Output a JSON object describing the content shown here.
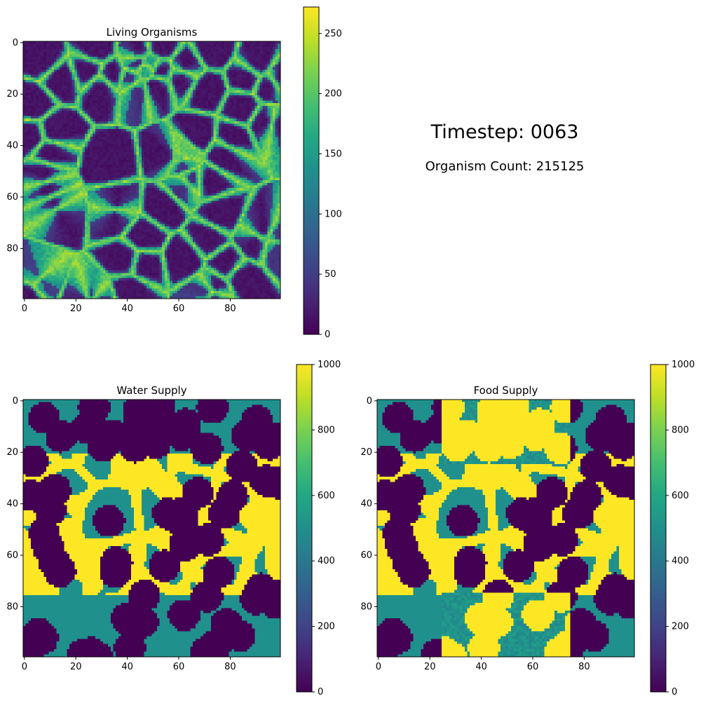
{
  "timestep_label": "Timestep: 0063",
  "count_label": "Organism Count: 215125",
  "chart_data": [
    {
      "type": "heatmap",
      "name": "living-organisms",
      "title": "Living Organisms",
      "grid_size": [
        100,
        100
      ],
      "x_ticks": [
        0,
        20,
        40,
        60,
        80
      ],
      "y_ticks": [
        0,
        20,
        40,
        60,
        80
      ],
      "colormap": "viridis",
      "vmin": 0,
      "vmax": 272,
      "colorbar_ticks": [
        0,
        50,
        100,
        150,
        200,
        250
      ],
      "description": "network of ring-shaped organism colonies on a low background"
    },
    {
      "type": "heatmap",
      "name": "water-supply",
      "title": "Water Supply",
      "grid_size": [
        100,
        100
      ],
      "x_ticks": [
        0,
        20,
        40,
        60,
        80
      ],
      "y_ticks": [
        0,
        20,
        40,
        60,
        80
      ],
      "colormap": "viridis",
      "vmin": 0,
      "vmax": 1000,
      "colorbar_ticks": [
        0,
        200,
        400,
        600,
        800,
        1000
      ],
      "levels": [
        0,
        500,
        1000
      ]
    },
    {
      "type": "heatmap",
      "name": "food-supply",
      "title": "Food Supply",
      "grid_size": [
        100,
        100
      ],
      "x_ticks": [
        0,
        20,
        40,
        60,
        80
      ],
      "y_ticks": [
        0,
        20,
        40,
        60,
        80
      ],
      "colormap": "viridis",
      "vmin": 0,
      "vmax": 1000,
      "colorbar_ticks": [
        0,
        200,
        400,
        600,
        800,
        1000
      ],
      "levels": [
        0,
        500,
        1000
      ]
    }
  ]
}
